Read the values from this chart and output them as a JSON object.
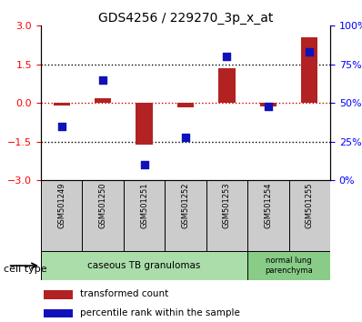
{
  "title": "GDS4256 / 229270_3p_x_at",
  "samples": [
    "GSM501249",
    "GSM501250",
    "GSM501251",
    "GSM501252",
    "GSM501253",
    "GSM501254",
    "GSM501255"
  ],
  "transformed_count": [
    -0.08,
    0.2,
    -1.6,
    -0.15,
    1.35,
    -0.12,
    2.55
  ],
  "percentile_rank": [
    35,
    65,
    10,
    28,
    80,
    48,
    83
  ],
  "ylim_left": [
    -3,
    3
  ],
  "ylim_right": [
    0,
    100
  ],
  "yticks_left": [
    -3,
    -1.5,
    0,
    1.5,
    3
  ],
  "yticks_right": [
    0,
    25,
    50,
    75,
    100
  ],
  "bar_color": "#b22222",
  "dot_color": "#1111bb",
  "hline0_color": "#cc0000",
  "hline_other_color": "#000000",
  "sample_box_color": "#cccccc",
  "cell_type_groups": [
    {
      "label": "caseous TB granulomas",
      "start": 0,
      "end": 5,
      "color": "#aaddaa"
    },
    {
      "label": "normal lung\nparenchyma",
      "start": 5,
      "end": 7,
      "color": "#88cc88"
    }
  ],
  "legend_items": [
    {
      "color": "#b22222",
      "label": "transformed count"
    },
    {
      "color": "#1111bb",
      "label": "percentile rank within the sample"
    }
  ],
  "cell_type_label": "cell type"
}
